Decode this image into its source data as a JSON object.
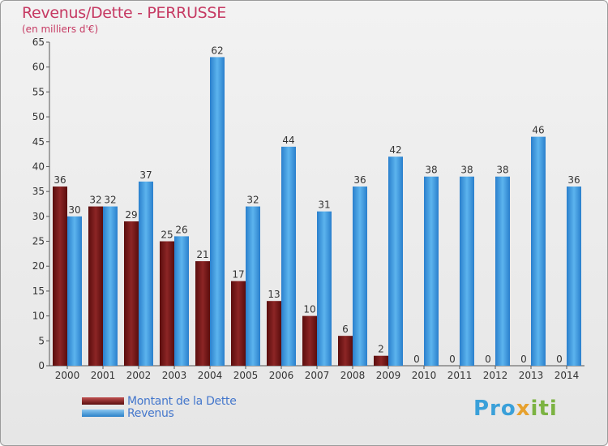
{
  "header": {
    "title": "Revenus/Dette - PERRUSSE",
    "subtitle": "(en milliers d'€)"
  },
  "chart_data": {
    "type": "bar",
    "title": "Revenus/Dette - PERRUSSE",
    "ylabel": "(en milliers d'€)",
    "xlabel": "",
    "categories": [
      "2000",
      "2001",
      "2002",
      "2003",
      "2004",
      "2005",
      "2006",
      "2007",
      "2008",
      "2009",
      "2010",
      "2011",
      "2012",
      "2013",
      "2014"
    ],
    "series": [
      {
        "name": "Montant de la Dette",
        "color": "#7a1c1c",
        "values": [
          36,
          32,
          29,
          25,
          21,
          17,
          13,
          10,
          6,
          2,
          0,
          0,
          0,
          0,
          0
        ]
      },
      {
        "name": "Revenus",
        "color": "#3a9ae0",
        "values": [
          30,
          32,
          37,
          26,
          62,
          32,
          44,
          31,
          36,
          42,
          38,
          38,
          38,
          46,
          36
        ]
      }
    ],
    "ylim": [
      0,
      65
    ],
    "yticks": [
      0,
      5,
      10,
      15,
      20,
      25,
      30,
      35,
      40,
      45,
      50,
      55,
      60,
      65
    ],
    "grid": false,
    "legend": "bottom-left"
  },
  "legend": {
    "items": [
      {
        "label": "Montant de la Dette",
        "color": "#7a1c1c"
      },
      {
        "label": "Revenus",
        "color": "#3a9ae0"
      }
    ]
  },
  "logo": {
    "part1": "Pro",
    "part2": "x",
    "part3": "iti"
  }
}
